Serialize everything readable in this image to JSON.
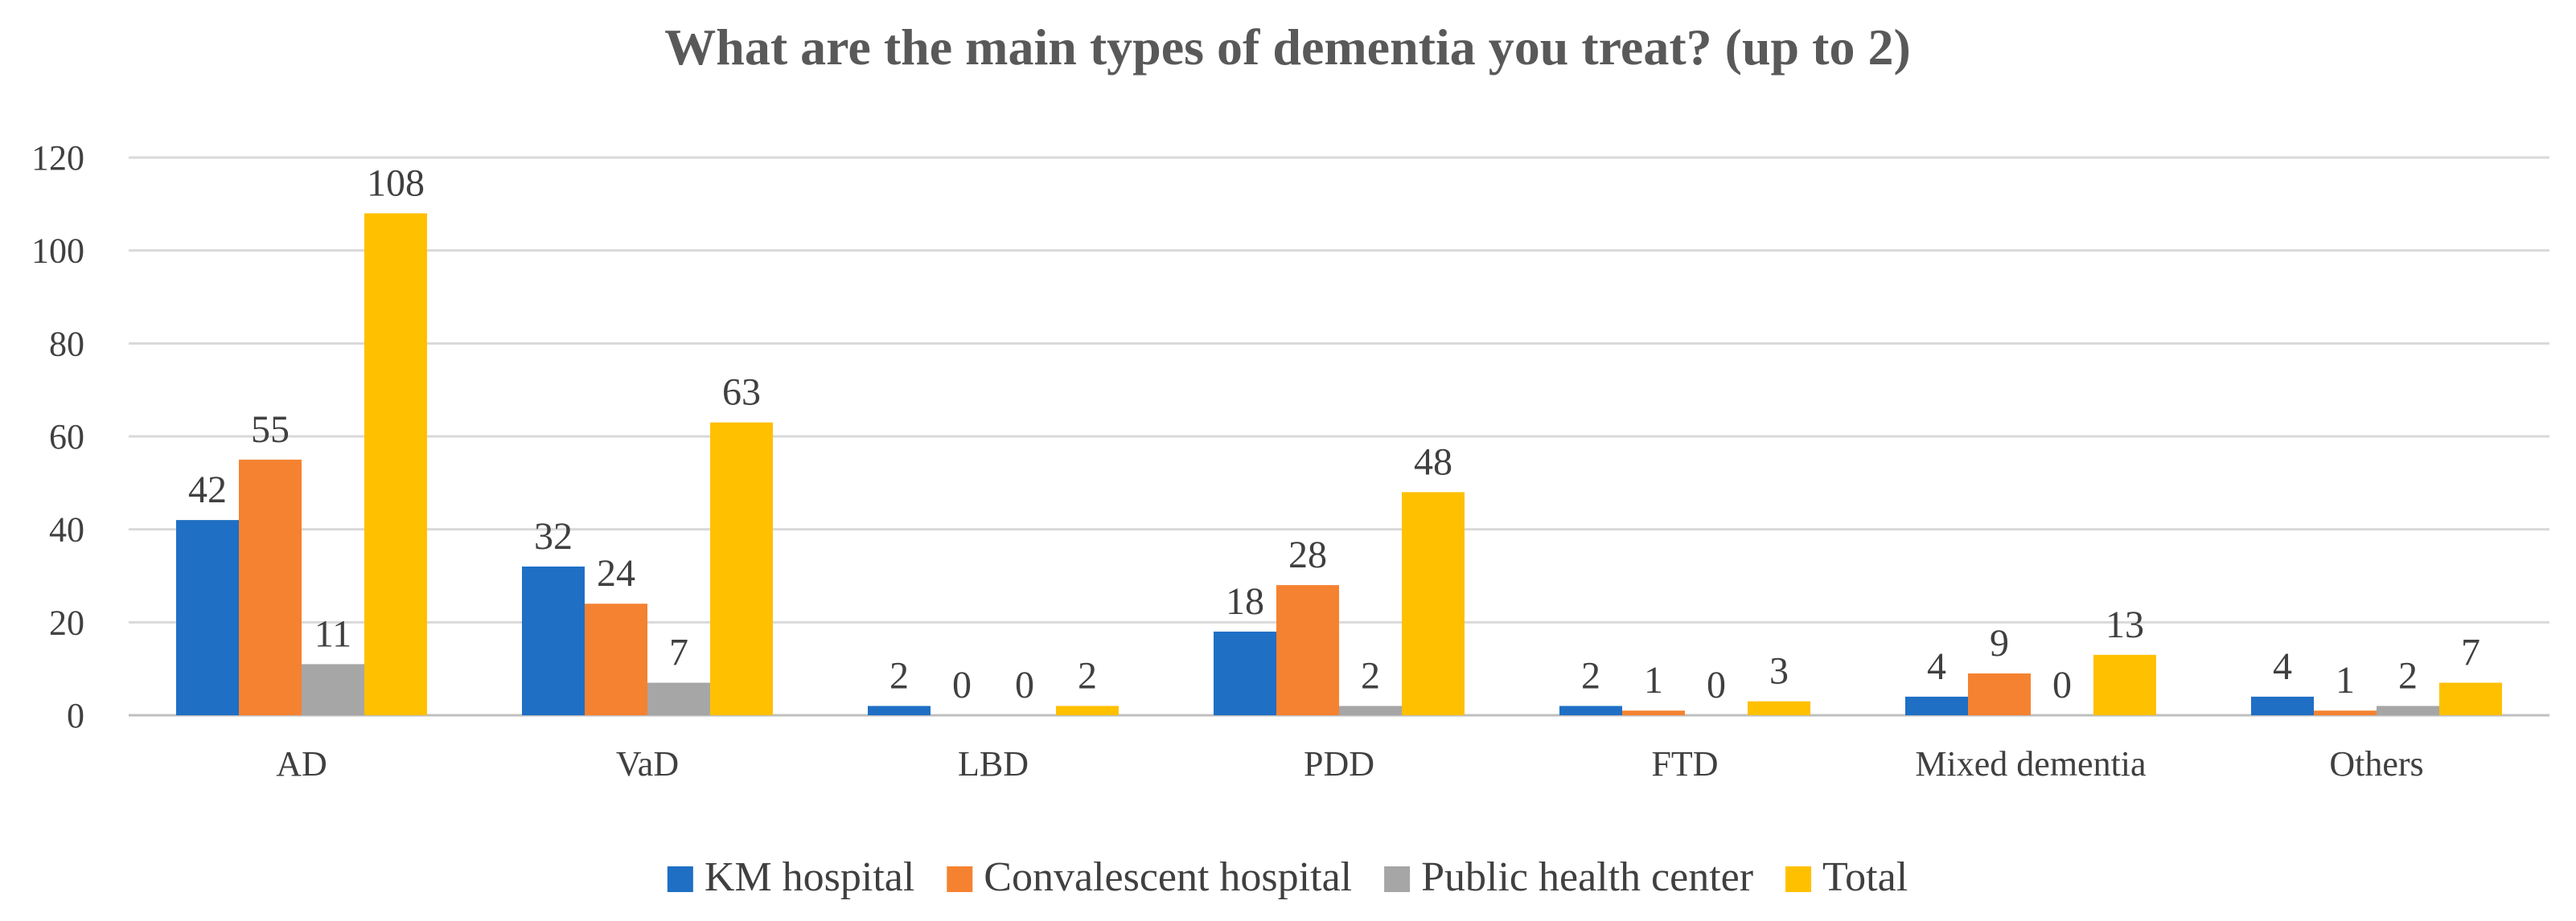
{
  "chart_data": {
    "type": "bar",
    "title": "What are the main types of  dementia you treat? (up to 2)",
    "xlabel": "",
    "ylabel": "",
    "ylim": [
      0,
      120
    ],
    "yticks": [
      0,
      20,
      40,
      60,
      80,
      100,
      120
    ],
    "grid": true,
    "legend_position": "bottom",
    "categories": [
      "AD",
      "VaD",
      "LBD",
      "PDD",
      "FTD",
      "Mixed dementia",
      "Others"
    ],
    "series": [
      {
        "name": "KM hospital",
        "color": "#1f6fc5",
        "values": [
          42,
          32,
          2,
          18,
          2,
          4,
          4
        ]
      },
      {
        "name": "Convalescent hospital",
        "color": "#f58230",
        "values": [
          55,
          24,
          0,
          28,
          1,
          9,
          1
        ]
      },
      {
        "name": "Public health center",
        "color": "#a6a6a6",
        "values": [
          11,
          7,
          0,
          2,
          0,
          0,
          2
        ]
      },
      {
        "name": "Total",
        "color": "#ffc000",
        "values": [
          108,
          63,
          2,
          48,
          3,
          13,
          7
        ]
      }
    ]
  }
}
